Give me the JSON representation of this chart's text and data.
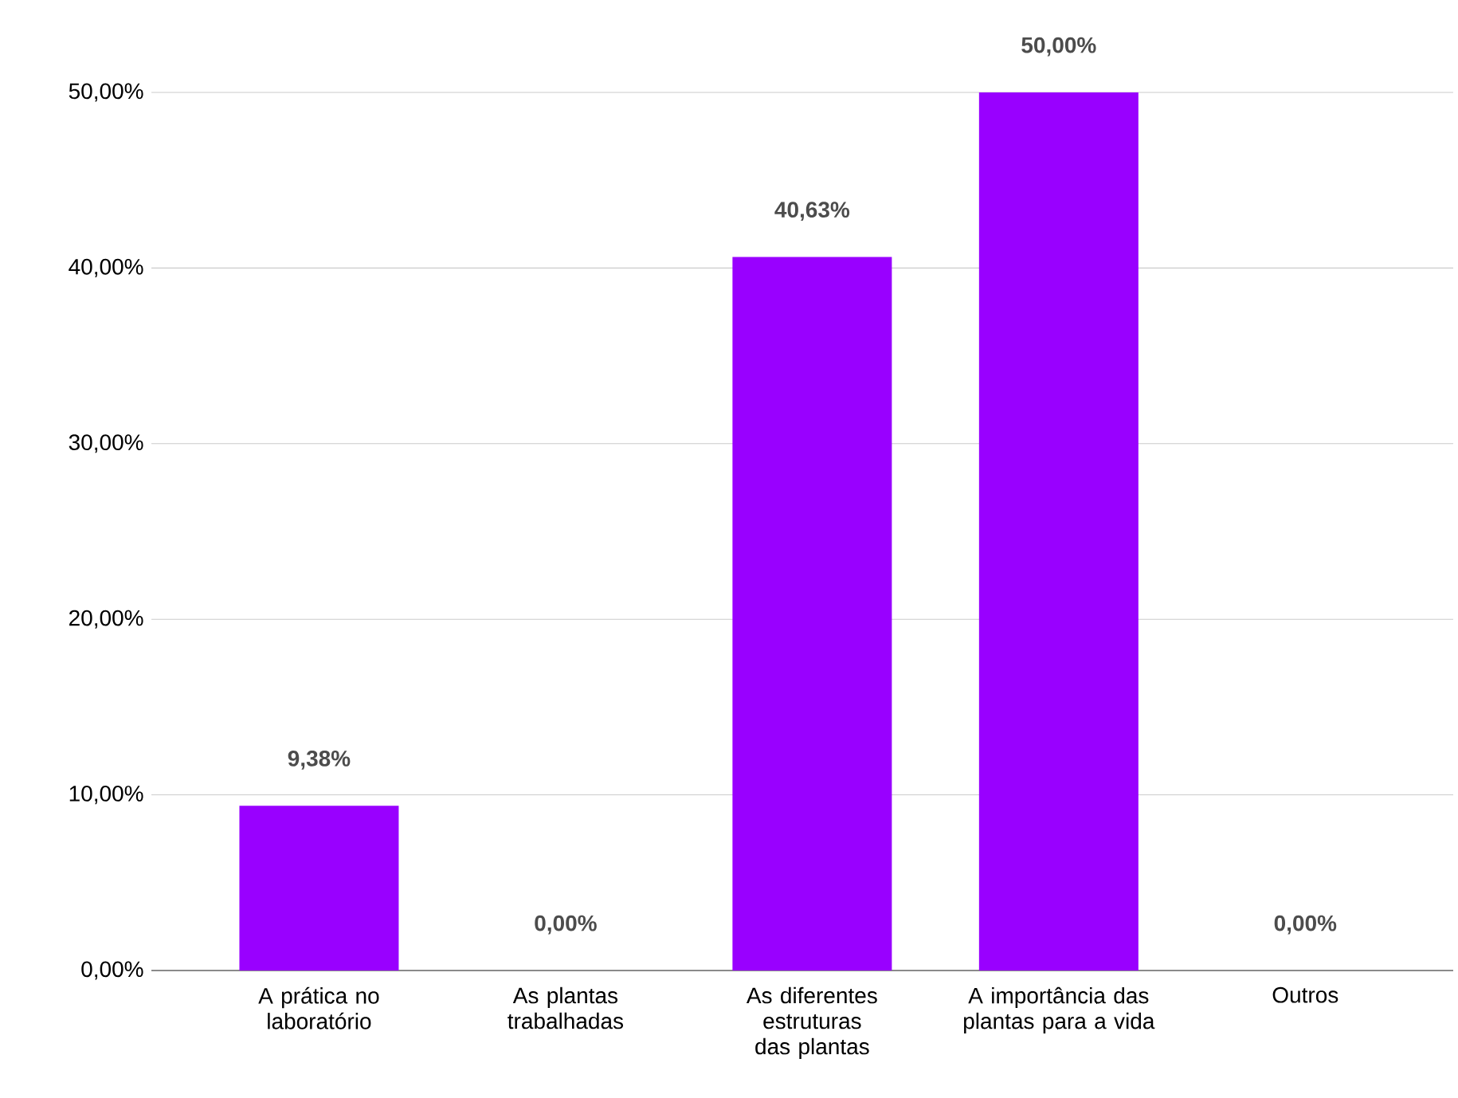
{
  "chart_data": {
    "type": "bar",
    "categories": [
      "A prática no laboratório",
      "As plantas trabalhadas",
      "As diferentes estruturas das plantas",
      "A importância das plantas para a vida",
      "Outros"
    ],
    "values": [
      9.38,
      0,
      40.63,
      50,
      0
    ],
    "value_labels": [
      "9,38%",
      "0,00%",
      "40,63%",
      "50,00%",
      "0,00%"
    ],
    "color": "#9900ff",
    "ylim": [
      0,
      50
    ],
    "yticks": [
      {
        "value": 0,
        "label": "0,00%"
      },
      {
        "value": 10,
        "label": "10,00%"
      },
      {
        "value": 20,
        "label": "20,00%"
      },
      {
        "value": 30,
        "label": "30,00%"
      },
      {
        "value": 40,
        "label": "40,00%"
      },
      {
        "value": 50,
        "label": "50,00%"
      }
    ],
    "grid": "y"
  }
}
